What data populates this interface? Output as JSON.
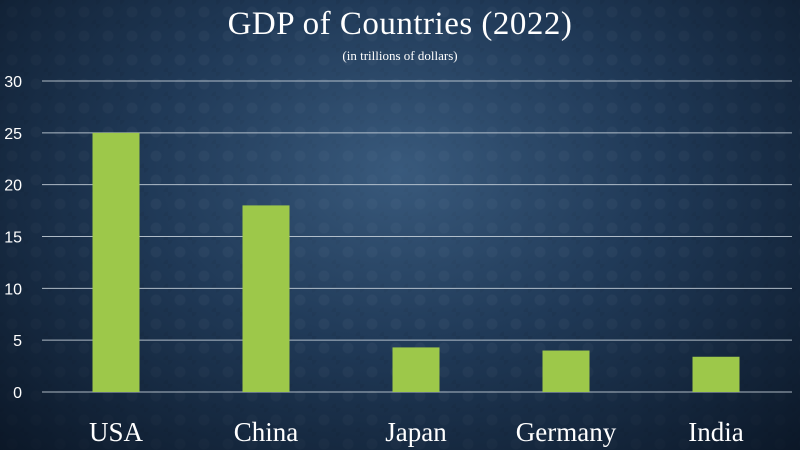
{
  "chart_data": {
    "type": "bar",
    "title": "GDP of Countries (2022)",
    "subtitle": "(in trillions of dollars)",
    "xlabel": "",
    "ylabel": "",
    "categories": [
      "USA",
      "China",
      "Japan",
      "Germany",
      "India"
    ],
    "values": [
      25,
      18,
      4.3,
      4.0,
      3.4
    ],
    "ylim": [
      0,
      30
    ],
    "yticks": [
      0,
      5,
      10,
      15,
      20,
      25,
      30
    ],
    "grid": true,
    "legend": "none",
    "bar_color": "#9dc84a",
    "grid_color": "#c9d3dc"
  }
}
